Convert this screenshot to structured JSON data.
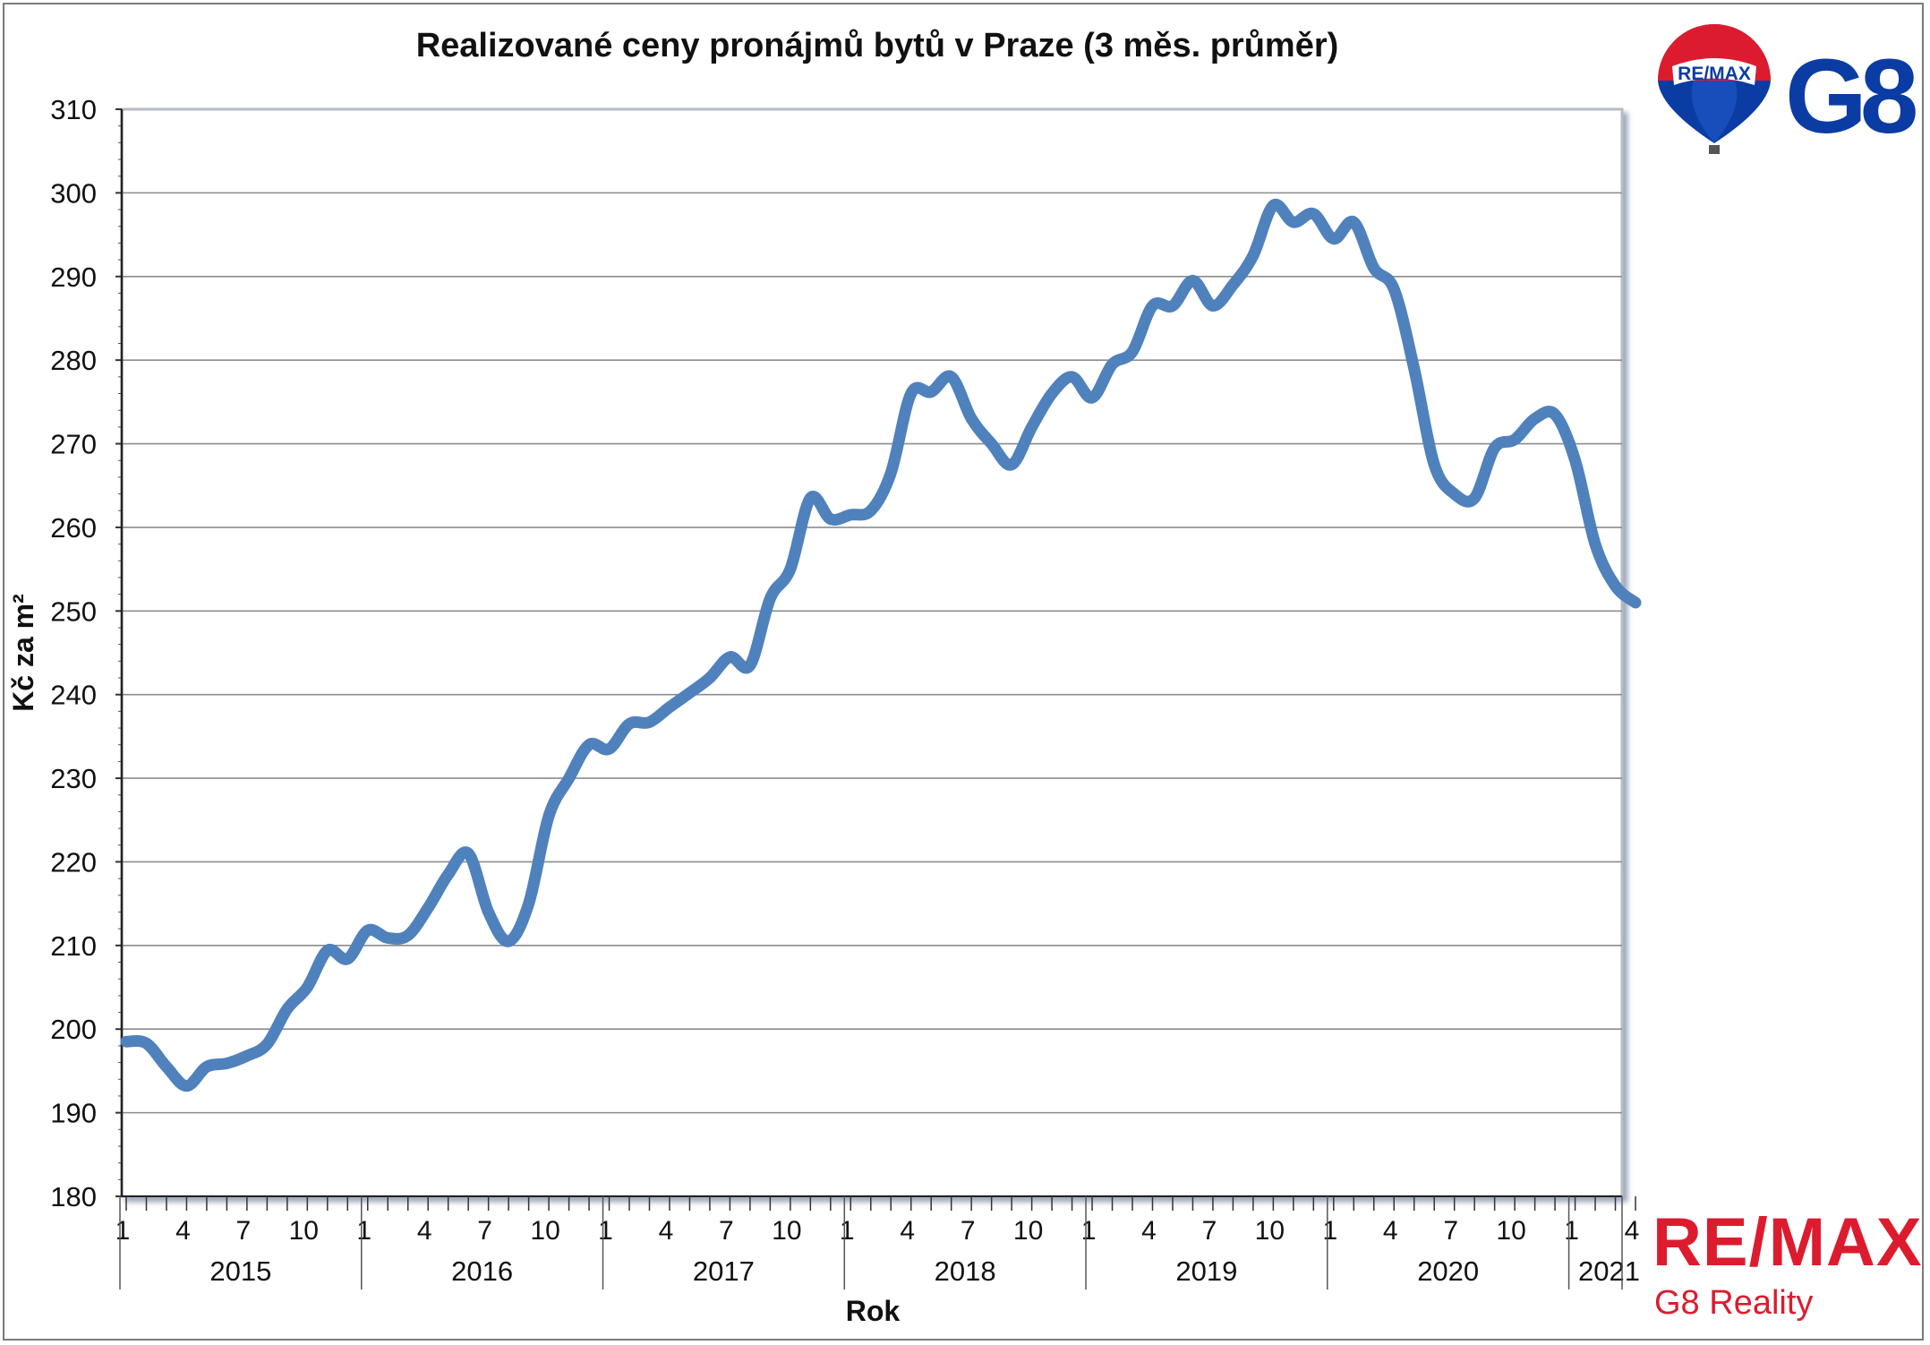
{
  "chart_data": {
    "type": "line",
    "title": "Realizované ceny pronájmů bytů v Praze (3 měs. průměr)",
    "xlabel": "Rok",
    "ylabel": "Kč za m²",
    "ylim": [
      180,
      310
    ],
    "yticks": [
      180,
      190,
      200,
      210,
      220,
      230,
      240,
      250,
      260,
      270,
      280,
      290,
      300,
      310
    ],
    "month_tick_labels": [
      "1",
      "4",
      "7",
      "10"
    ],
    "years": [
      "2015",
      "2016",
      "2017",
      "2018",
      "2019",
      "2020",
      "2021"
    ],
    "grid": true,
    "legend": "none",
    "series": [
      {
        "color": "#4f81bd",
        "x": [
          "2015-01",
          "2015-02",
          "2015-03",
          "2015-04",
          "2015-05",
          "2015-06",
          "2015-07",
          "2015-08",
          "2015-09",
          "2015-10",
          "2015-11",
          "2015-12",
          "2016-01",
          "2016-02",
          "2016-03",
          "2016-04",
          "2016-05",
          "2016-06",
          "2016-07",
          "2016-08",
          "2016-09",
          "2016-10",
          "2016-11",
          "2016-12",
          "2017-01",
          "2017-02",
          "2017-03",
          "2017-04",
          "2017-05",
          "2017-06",
          "2017-07",
          "2017-08",
          "2017-09",
          "2017-10",
          "2017-11",
          "2017-12",
          "2018-01",
          "2018-02",
          "2018-03",
          "2018-04",
          "2018-05",
          "2018-06",
          "2018-07",
          "2018-08",
          "2018-09",
          "2018-10",
          "2018-11",
          "2018-12",
          "2019-01",
          "2019-02",
          "2019-03",
          "2019-04",
          "2019-05",
          "2019-06",
          "2019-07",
          "2019-08",
          "2019-09",
          "2019-10",
          "2019-11",
          "2019-12",
          "2020-01",
          "2020-02",
          "2020-03",
          "2020-04",
          "2020-05",
          "2020-06",
          "2020-07",
          "2020-08",
          "2020-09",
          "2020-10",
          "2020-11",
          "2020-12",
          "2021-01",
          "2021-02",
          "2021-03",
          "2021-04"
        ],
        "values": [
          198.5,
          198.3,
          195.5,
          193.2,
          195.5,
          195.9,
          196.8,
          198.2,
          202.4,
          205.0,
          209.4,
          208.4,
          211.8,
          210.9,
          211.2,
          214.5,
          218.5,
          221.0,
          214.0,
          210.5,
          215.0,
          225.5,
          230.0,
          234.0,
          233.5,
          236.5,
          236.7,
          238.5,
          240.2,
          242.0,
          244.5,
          243.5,
          251.5,
          255.0,
          263.5,
          261.0,
          261.5,
          262.0,
          266.5,
          276.0,
          276.2,
          278.0,
          273.0,
          270.0,
          267.5,
          272.0,
          276.0,
          278.0,
          275.5,
          279.5,
          281.0,
          286.5,
          286.5,
          289.5,
          286.5,
          289.0,
          292.5,
          298.5,
          296.5,
          297.5,
          294.5,
          296.5,
          291.0,
          288.5,
          279.0,
          267.5,
          264.0,
          263.5,
          269.5,
          270.5,
          273.0,
          273.5,
          268.0,
          258.0,
          253.0,
          251.0
        ]
      }
    ]
  },
  "logos": {
    "top": {
      "balloon_text": "RE/MAX",
      "brand": "G8"
    },
    "bottom": {
      "wordmark": "RE/MAX",
      "subtitle": "G8 Reality"
    }
  },
  "colors": {
    "line": "#4f81bd",
    "remax_red": "#dc1c2e",
    "remax_blue": "#0b3ca3",
    "grid": "#8c8c8c"
  }
}
